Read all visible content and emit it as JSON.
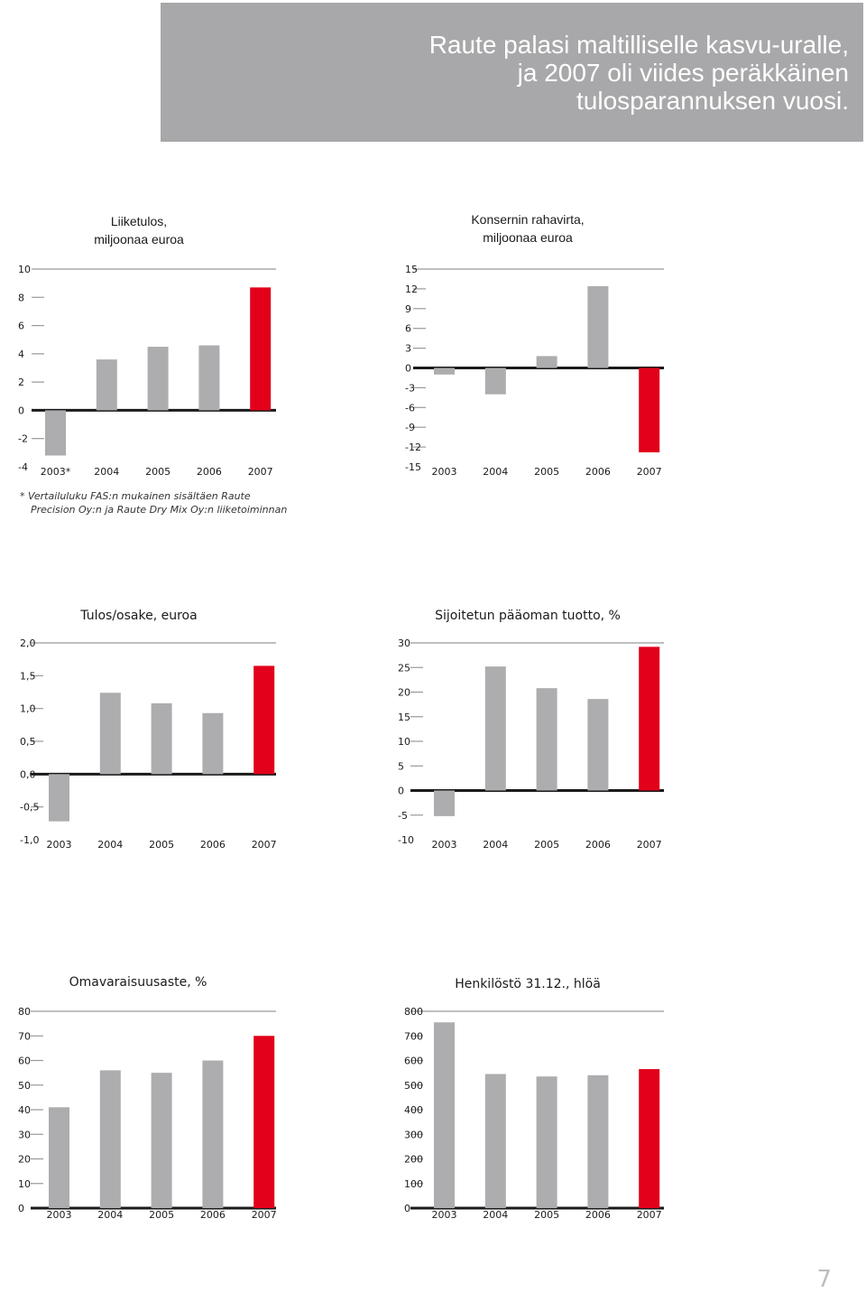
{
  "banner": {
    "lines": [
      "Raute palasi maltilliselle kasvu-uralle,",
      "ja 2007 oli viides peräkkäinen",
      "tulosparannuksen vuosi."
    ]
  },
  "footnote": {
    "lines": [
      "* Vertailuluku FAS:n mukainen sisältäen Raute",
      "Precision Oy:n ja Raute Dry Mix Oy:n liiketoiminnan"
    ]
  },
  "page_number": "7",
  "colors": {
    "grey_bar": "#adadaf",
    "red_bar": "#e2001a",
    "axis": "#999999",
    "zero_line": "#1a1a1a"
  },
  "chart_data": [
    {
      "type": "bar",
      "title_lines": [
        "Liiketulos,",
        "miljoonaa euroa"
      ],
      "title_bold": false,
      "categories": [
        "2003*",
        "2004",
        "2005",
        "2006",
        "2007"
      ],
      "values": [
        -3.2,
        3.6,
        4.5,
        4.6,
        8.7
      ],
      "highlight_last": true,
      "ylim": [
        -4,
        10
      ],
      "yticks": [
        10,
        8,
        6,
        4,
        2,
        0,
        -2,
        -4
      ],
      "ytick_labels": [
        "10",
        "8",
        "6",
        "4",
        "2",
        "0",
        "-2",
        "-4"
      ],
      "grid": false
    },
    {
      "type": "bar",
      "title_lines": [
        "Konsernin rahavirta,",
        "miljoonaa euroa"
      ],
      "title_bold": false,
      "categories": [
        "2003",
        "2004",
        "2005",
        "2006",
        "2007"
      ],
      "values": [
        -1.0,
        -4.0,
        1.8,
        12.4,
        -12.8
      ],
      "highlight_last": true,
      "ylim": [
        -15,
        15
      ],
      "yticks": [
        15,
        12,
        9,
        6,
        3,
        0,
        -3,
        -6,
        -9,
        -12,
        -15
      ],
      "ytick_labels": [
        "15",
        "12",
        "9",
        "6",
        "3",
        "0",
        "-3",
        "-6",
        "-9",
        "-12",
        "-15"
      ],
      "grid": false
    },
    {
      "type": "bar",
      "title_lines": [
        "Tulos/osake, euroa"
      ],
      "title_bold": true,
      "categories": [
        "2003",
        "2004",
        "2005",
        "2006",
        "2007"
      ],
      "values": [
        -0.72,
        1.24,
        1.08,
        0.93,
        1.65
      ],
      "highlight_last": true,
      "ylim": [
        -1.0,
        2.0
      ],
      "yticks": [
        2.0,
        1.5,
        1.0,
        0.5,
        0.0,
        -0.5,
        -1.0
      ],
      "ytick_labels": [
        "2,0",
        "1,5",
        "1,0",
        "0,5",
        "0,0",
        "-0,5",
        "-1,0"
      ],
      "grid": false
    },
    {
      "type": "bar",
      "title_lines": [
        "Sijoitetun pääoman tuotto, %"
      ],
      "title_bold": true,
      "categories": [
        "2003",
        "2004",
        "2005",
        "2006",
        "2007"
      ],
      "values": [
        -5.2,
        25.2,
        20.8,
        18.6,
        29.2
      ],
      "highlight_last": true,
      "ylim": [
        -10,
        30
      ],
      "yticks": [
        30,
        25,
        20,
        15,
        10,
        5,
        0,
        -5,
        -10
      ],
      "ytick_labels": [
        "30",
        "25",
        "20",
        "15",
        "10",
        "5",
        "0",
        "-5",
        "-10"
      ],
      "grid": false
    },
    {
      "type": "bar",
      "title_lines": [
        "Omavaraisuusaste, %"
      ],
      "title_bold": true,
      "categories": [
        "2003",
        "2004",
        "2005",
        "2006",
        "2007"
      ],
      "values": [
        41,
        56,
        55,
        60,
        70
      ],
      "highlight_last": true,
      "ylim": [
        0,
        80
      ],
      "yticks": [
        80,
        70,
        60,
        50,
        40,
        30,
        20,
        10,
        0
      ],
      "ytick_labels": [
        "80",
        "70",
        "60",
        "50",
        "40",
        "30",
        "20",
        "10",
        "0"
      ],
      "grid": false
    },
    {
      "type": "bar",
      "title_lines": [
        "Henkilöstö 31.12., hlöä"
      ],
      "title_bold": true,
      "categories": [
        "2003",
        "2004",
        "2005",
        "2006",
        "2007"
      ],
      "values": [
        755,
        545,
        535,
        540,
        565
      ],
      "highlight_last": true,
      "ylim": [
        0,
        800
      ],
      "yticks": [
        800,
        700,
        600,
        500,
        400,
        300,
        200,
        100,
        0
      ],
      "ytick_labels": [
        "800",
        "700",
        "600",
        "500",
        "400",
        "300",
        "200",
        "100",
        "0"
      ],
      "grid": false
    }
  ]
}
